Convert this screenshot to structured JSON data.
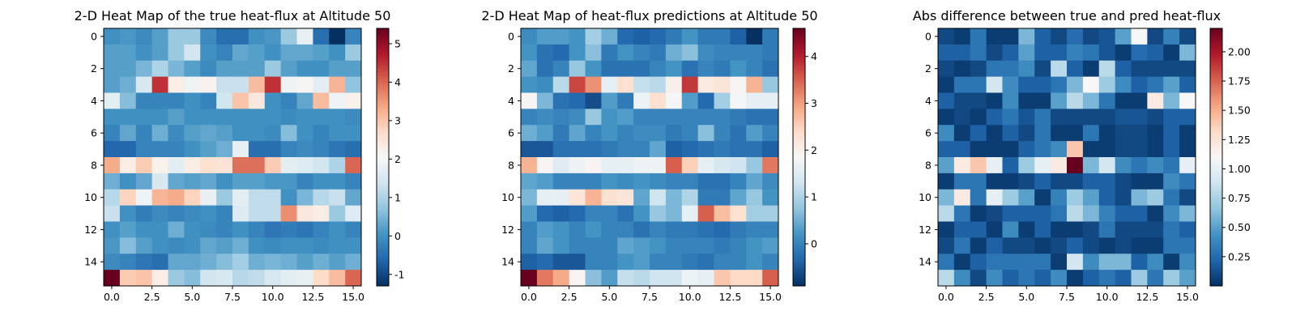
{
  "chart_data": [
    {
      "type": "heatmap",
      "title": "2-D Heat Map of the true heat-flux at Altitude 50",
      "colormap": "RdBu_r",
      "vmin": -1.3,
      "vmax": 5.4,
      "x_ticks": [
        "0.0",
        "2.5",
        "5.0",
        "7.5",
        "10.0",
        "12.5",
        "15.0"
      ],
      "y_ticks": [
        "0",
        "2",
        "4",
        "6",
        "8",
        "10",
        "12",
        "14"
      ],
      "colorbar_ticks": [
        "-1",
        "0",
        "1",
        "2",
        "3",
        "4",
        "5"
      ],
      "z": [
        [
          0.0,
          0.1,
          -0.1,
          0.2,
          0.8,
          0.8,
          -0.1,
          -0.5,
          -0.5,
          0.0,
          0.1,
          0.8,
          1.8,
          -0.5,
          -1.3,
          -0.2
        ],
        [
          0.2,
          0.2,
          0.0,
          0.2,
          0.8,
          1.4,
          0.0,
          -0.2,
          0.3,
          0.2,
          0.0,
          0.3,
          0.3,
          0.2,
          0.0,
          0.8
        ],
        [
          0.2,
          0.2,
          0.5,
          1.0,
          0.5,
          0.2,
          -0.1,
          0.2,
          0.2,
          0.2,
          0.8,
          0.2,
          0.0,
          0.0,
          0.2,
          0.2
        ],
        [
          0.2,
          0.4,
          1.5,
          4.5,
          2.3,
          1.9,
          2.2,
          1.3,
          1.3,
          3.1,
          4.5,
          1.9,
          2.1,
          1.7,
          3.2,
          0.7
        ],
        [
          1.7,
          0.6,
          -0.2,
          -0.2,
          -0.2,
          0.0,
          -0.2,
          1.4,
          3.0,
          2.4,
          0.0,
          -0.2,
          0.3,
          3.1,
          1.9,
          2.2
        ],
        [
          0.0,
          0.0,
          0.0,
          0.0,
          0.2,
          0.0,
          0.0,
          0.0,
          0.0,
          0.0,
          0.0,
          -0.1,
          0.0,
          0.0,
          0.0,
          -0.1
        ],
        [
          -0.2,
          0.3,
          -0.2,
          0.4,
          -0.1,
          0.2,
          0.3,
          0.2,
          0.0,
          0.0,
          -0.1,
          0.6,
          0.0,
          -0.2,
          0.0,
          0.0
        ],
        [
          -0.6,
          -0.6,
          -0.2,
          -0.2,
          -0.2,
          0.0,
          0.2,
          0.4,
          1.8,
          -0.5,
          -0.5,
          -0.2,
          -0.1,
          -0.2,
          -0.4,
          -0.5
        ],
        [
          3.3,
          2.3,
          2.9,
          2.2,
          1.7,
          2.3,
          2.6,
          2.5,
          3.9,
          3.9,
          2.9,
          1.7,
          1.6,
          1.4,
          1.0,
          4.0
        ],
        [
          0.4,
          0.0,
          0.3,
          1.5,
          0.3,
          0.2,
          0.3,
          0.0,
          0.2,
          0.2,
          0.1,
          0.1,
          -0.2,
          0.0,
          0.0,
          -0.2
        ],
        [
          1.1,
          2.8,
          1.9,
          3.2,
          3.3,
          2.8,
          1.8,
          0.8,
          1.7,
          1.2,
          1.2,
          0.0,
          0.5,
          1.1,
          1.3,
          0.3
        ],
        [
          1.3,
          0.0,
          -0.3,
          -0.1,
          -0.2,
          -0.1,
          0.0,
          -0.2,
          1.6,
          1.2,
          1.2,
          3.6,
          2.4,
          2.3,
          0.8,
          1.6
        ],
        [
          0.0,
          0.2,
          0.0,
          0.0,
          0.4,
          0.0,
          -0.1,
          -0.2,
          0.0,
          -0.2,
          -0.4,
          -0.3,
          -0.4,
          -0.2,
          0.0,
          -0.2
        ],
        [
          0.1,
          0.6,
          0.2,
          0.0,
          -0.1,
          0.0,
          0.3,
          0.2,
          0.4,
          0.0,
          -0.1,
          0.0,
          0.0,
          -0.1,
          0.0,
          0.0
        ],
        [
          -0.1,
          -0.2,
          -0.4,
          -0.5,
          0.3,
          0.3,
          0.4,
          0.6,
          0.9,
          0.4,
          0.5,
          0.4,
          0.2,
          0.4,
          0.2,
          0.4
        ],
        [
          5.4,
          2.9,
          3.0,
          2.3,
          0.8,
          0.6,
          1.4,
          1.5,
          1.1,
          1.2,
          1.5,
          1.7,
          1.8,
          2.7,
          3.1,
          4.0
        ]
      ]
    },
    {
      "type": "heatmap",
      "title": "2-D Heat Map of heat-flux predictions at Altitude 50",
      "colormap": "RdBu_r",
      "vmin": -0.9,
      "vmax": 4.6,
      "x_ticks": [
        "0.0",
        "2.5",
        "5.0",
        "7.5",
        "10.0",
        "12.5",
        "15.0"
      ],
      "y_ticks": [
        "0",
        "2",
        "4",
        "6",
        "8",
        "10",
        "12",
        "14"
      ],
      "colorbar_ticks": [
        "0",
        "1",
        "2",
        "3",
        "4"
      ],
      "z": [
        [
          0.1,
          0.3,
          0.3,
          0.2,
          0.9,
          0.5,
          -0.3,
          -0.4,
          -0.3,
          -0.1,
          0.2,
          -0.1,
          -0.1,
          -0.4,
          -0.9,
          -0.1
        ],
        [
          0.2,
          -0.2,
          -0.3,
          0.2,
          0.7,
          -0.1,
          0.2,
          0.0,
          -0.1,
          0.5,
          0.7,
          0.1,
          0.0,
          0.0,
          0.0,
          -0.1
        ],
        [
          0.4,
          -0.2,
          0.0,
          0.8,
          0.2,
          -0.2,
          -0.2,
          -0.2,
          0.0,
          0.2,
          -0.2,
          0.0,
          -0.1,
          0.2,
          0.0,
          -0.2
        ],
        [
          0.2,
          0.1,
          1.1,
          3.7,
          3.1,
          1.6,
          2.3,
          1.2,
          1.1,
          2.0,
          3.8,
          2.1,
          2.2,
          1.9,
          2.8,
          0.8
        ],
        [
          1.9,
          0.6,
          -0.2,
          -0.3,
          -0.6,
          0.3,
          -0.1,
          1.7,
          2.3,
          1.8,
          0.3,
          -0.3,
          0.9,
          1.8,
          1.6,
          1.6
        ],
        [
          0.0,
          0.1,
          0.0,
          0.1,
          0.8,
          0.2,
          0.3,
          0.0,
          0.0,
          0.0,
          0.0,
          0.0,
          0.0,
          -0.1,
          -0.2,
          -0.2
        ],
        [
          0.5,
          0.3,
          -0.1,
          0.4,
          0.0,
          0.2,
          0.0,
          0.1,
          0.1,
          -0.1,
          0.0,
          0.7,
          0.0,
          -0.2,
          0.3,
          0.0
        ],
        [
          -0.5,
          -0.5,
          -0.2,
          -0.2,
          -0.2,
          -0.1,
          0.0,
          0.0,
          0.4,
          -0.4,
          -0.3,
          -0.2,
          -0.1,
          -0.2,
          -0.2,
          -0.4
        ],
        [
          2.8,
          1.9,
          1.5,
          1.7,
          1.9,
          1.6,
          1.6,
          1.7,
          1.7,
          3.5,
          2.5,
          1.6,
          1.4,
          1.3,
          0.8,
          3.3
        ],
        [
          0.4,
          0.3,
          0.0,
          0.0,
          0.0,
          0.2,
          0.1,
          0.2,
          0.1,
          0.0,
          0.0,
          -0.2,
          -0.2,
          0.0,
          0.4,
          0.1
        ],
        [
          0.6,
          1.6,
          1.6,
          2.2,
          2.8,
          2.3,
          2.2,
          0.4,
          1.3,
          0.6,
          1.0,
          -0.1,
          -0.1,
          0.4,
          0.8,
          0.2
        ],
        [
          0.3,
          -0.3,
          -0.4,
          -0.3,
          0.0,
          0.0,
          -0.2,
          0.2,
          0.8,
          0.6,
          1.6,
          3.5,
          2.7,
          2.3,
          0.9,
          0.9
        ],
        [
          0.0,
          0.3,
          0.2,
          0.0,
          0.2,
          0.0,
          0.0,
          -0.2,
          0.0,
          -0.1,
          -0.1,
          -0.2,
          -0.3,
          -0.1,
          0.0,
          0.0
        ],
        [
          0.0,
          0.4,
          0.2,
          0.0,
          0.0,
          0.0,
          0.4,
          0.3,
          0.2,
          0.0,
          0.0,
          0.0,
          -0.1,
          0.0,
          0.2,
          0.3
        ],
        [
          -0.4,
          -0.3,
          -0.5,
          -0.5,
          0.0,
          0.0,
          0.2,
          0.3,
          0.0,
          0.0,
          -0.1,
          -0.2,
          0.0,
          0.0,
          0.2,
          0.0
        ],
        [
          4.6,
          3.3,
          2.9,
          1.9,
          0.7,
          0.3,
          1.2,
          1.1,
          1.3,
          1.3,
          1.7,
          1.6,
          2.6,
          2.4,
          2.4,
          3.5
        ]
      ]
    },
    {
      "type": "heatmap",
      "title": "Abs difference between true and pred heat-flux",
      "colormap": "RdBu_r",
      "vmin": 0.0,
      "vmax": 2.2,
      "x_ticks": [
        "0.0",
        "2.5",
        "5.0",
        "7.5",
        "10.0",
        "12.5",
        "15.0"
      ],
      "y_ticks": [
        "0",
        "2",
        "4",
        "6",
        "8",
        "10",
        "12",
        "14"
      ],
      "colorbar_ticks": [
        "0.25",
        "0.50",
        "0.75",
        "1.00",
        "1.25",
        "1.50",
        "1.75",
        "2.00"
      ],
      "z": [
        [
          0.1,
          0.05,
          0.3,
          0.05,
          0.05,
          0.6,
          0.2,
          0.1,
          0.25,
          0.1,
          0.15,
          0.5,
          1.1,
          0.1,
          0.35,
          0.1
        ],
        [
          0.2,
          0.2,
          0.3,
          0.1,
          0.2,
          0.5,
          0.2,
          0.2,
          0.35,
          0.3,
          0.15,
          0.05,
          0.25,
          0.2,
          0.05,
          0.6
        ],
        [
          0.1,
          0.05,
          0.1,
          0.3,
          0.3,
          0.4,
          0.1,
          0.8,
          0.2,
          0.05,
          0.8,
          0.2,
          0.1,
          0.1,
          0.1,
          0.1
        ],
        [
          0.05,
          0.3,
          0.3,
          0.9,
          0.4,
          0.2,
          0.2,
          0.3,
          0.6,
          1.1,
          0.7,
          0.4,
          0.2,
          0.3,
          0.5,
          0.2
        ],
        [
          0.2,
          0.1,
          0.1,
          0.05,
          0.4,
          0.05,
          0.05,
          0.5,
          0.8,
          0.6,
          0.3,
          0.05,
          0.05,
          1.2,
          0.6,
          1.1
        ],
        [
          0.05,
          0.1,
          0.05,
          0.2,
          0.3,
          0.15,
          0.3,
          0.1,
          0.1,
          0.1,
          0.1,
          0.15,
          0.15,
          0.1,
          0.2,
          0.2
        ],
        [
          0.4,
          0.05,
          0.2,
          0.05,
          0.2,
          0.1,
          0.3,
          0.05,
          0.05,
          0.3,
          0.05,
          0.1,
          0.1,
          0.05,
          0.2,
          0.05
        ],
        [
          0.2,
          0.2,
          0.05,
          0.05,
          0.05,
          0.2,
          0.3,
          0.4,
          1.4,
          0.05,
          0.05,
          0.1,
          0.1,
          0.05,
          0.2,
          0.05
        ],
        [
          0.5,
          1.2,
          1.4,
          1.0,
          0.2,
          0.7,
          1.0,
          1.2,
          2.2,
          0.6,
          0.9,
          0.4,
          0.3,
          0.4,
          0.3,
          1.0
        ],
        [
          0.05,
          0.3,
          0.3,
          0.05,
          0.05,
          0.1,
          0.2,
          0.1,
          0.1,
          0.2,
          0.2,
          0.1,
          0.05,
          0.05,
          0.4,
          0.3
        ],
        [
          0.6,
          1.2,
          0.3,
          1.0,
          0.7,
          0.5,
          0.05,
          0.35,
          0.7,
          0.5,
          0.2,
          0.1,
          0.6,
          0.7,
          0.3,
          0.1
        ],
        [
          0.8,
          0.3,
          0.05,
          0.1,
          0.2,
          0.2,
          0.2,
          0.3,
          0.8,
          0.6,
          0.35,
          0.2,
          0.2,
          0.05,
          0.4,
          0.6
        ],
        [
          0.05,
          0.2,
          0.2,
          0.05,
          0.4,
          0.05,
          0.2,
          0.05,
          0.05,
          0.1,
          0.3,
          0.1,
          0.1,
          0.1,
          0.3,
          0.2
        ],
        [
          0.1,
          0.3,
          0.05,
          0.2,
          0.1,
          0.1,
          0.05,
          0.1,
          0.2,
          0.1,
          0.05,
          0.1,
          0.05,
          0.05,
          0.3,
          0.3
        ],
        [
          0.3,
          0.05,
          0.2,
          0.3,
          0.3,
          0.3,
          0.3,
          0.05,
          0.9,
          0.4,
          0.6,
          0.6,
          0.2,
          0.4,
          0.05,
          0.4
        ],
        [
          0.8,
          0.4,
          0.1,
          0.4,
          0.2,
          0.3,
          0.2,
          0.4,
          0.05,
          0.2,
          0.3,
          0.2,
          0.7,
          0.3,
          0.7,
          0.5
        ]
      ]
    }
  ]
}
